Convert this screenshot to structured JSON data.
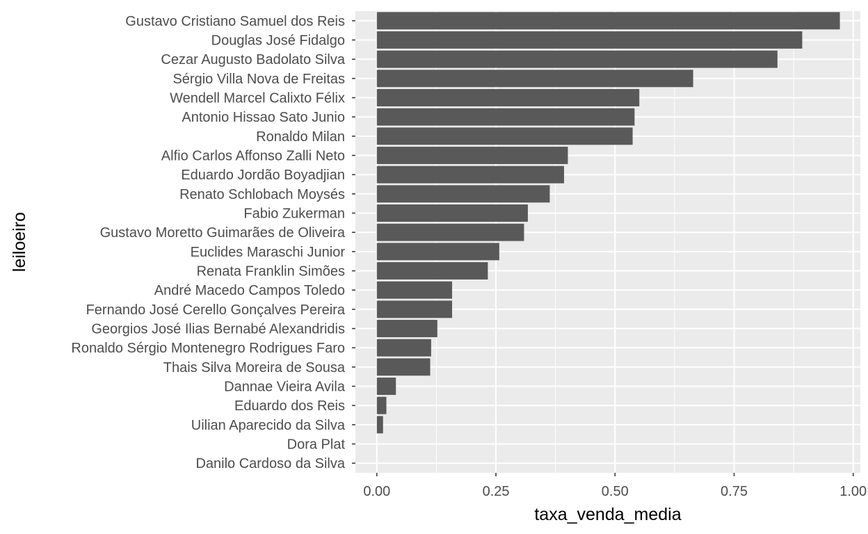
{
  "chart_data": {
    "type": "bar",
    "orientation": "horizontal",
    "title": "",
    "xlabel": "taxa_venda_media",
    "ylabel": "leiloeiro",
    "xlim": [
      -0.045,
      1.015
    ],
    "x_ticks": [
      0.0,
      0.25,
      0.5,
      0.75,
      1.0
    ],
    "x_tick_labels": [
      "0.00",
      "0.25",
      "0.50",
      "0.75",
      "1.00"
    ],
    "grid": true,
    "legend": "none",
    "colors": {
      "panel": "#ebebeb",
      "grid": "#ffffff",
      "bar": "#595959",
      "tick_text": "#4d4d4d"
    },
    "categories": [
      "Gustavo Cristiano Samuel dos Reis",
      "Douglas José Fidalgo",
      "Cezar Augusto Badolato Silva",
      "Sérgio Villa Nova de Freitas",
      "Wendell Marcel Calixto Félix",
      "Antonio Hissao Sato Junio",
      "Ronaldo Milan",
      "Alfio Carlos Affonso Zalli Neto",
      "Eduardo Jordão Boyadjian",
      "Renato Schlobach Moysés",
      "Fabio Zukerman",
      "Gustavo Moretto Guimarães de Oliveira",
      "Euclides Maraschi Junior",
      "Renata Franklin Simões",
      "André Macedo Campos Toledo",
      "Fernando José Cerello Gonçalves Pereira",
      "Georgios José Ilias Bernabé Alexandridis",
      "Ronaldo Sérgio Montenegro Rodrigues Faro",
      "Thais Silva Moreira de Sousa",
      "Dannae Vieira Avila",
      "Eduardo dos Reis",
      "Uilian Aparecido da Silva",
      "Dora Plat",
      "Danilo Cardoso da Silva"
    ],
    "values": [
      0.972,
      0.893,
      0.841,
      0.664,
      0.551,
      0.541,
      0.537,
      0.401,
      0.393,
      0.363,
      0.317,
      0.309,
      0.257,
      0.233,
      0.158,
      0.158,
      0.127,
      0.114,
      0.112,
      0.04,
      0.02,
      0.013,
      0.0,
      0.0
    ]
  }
}
